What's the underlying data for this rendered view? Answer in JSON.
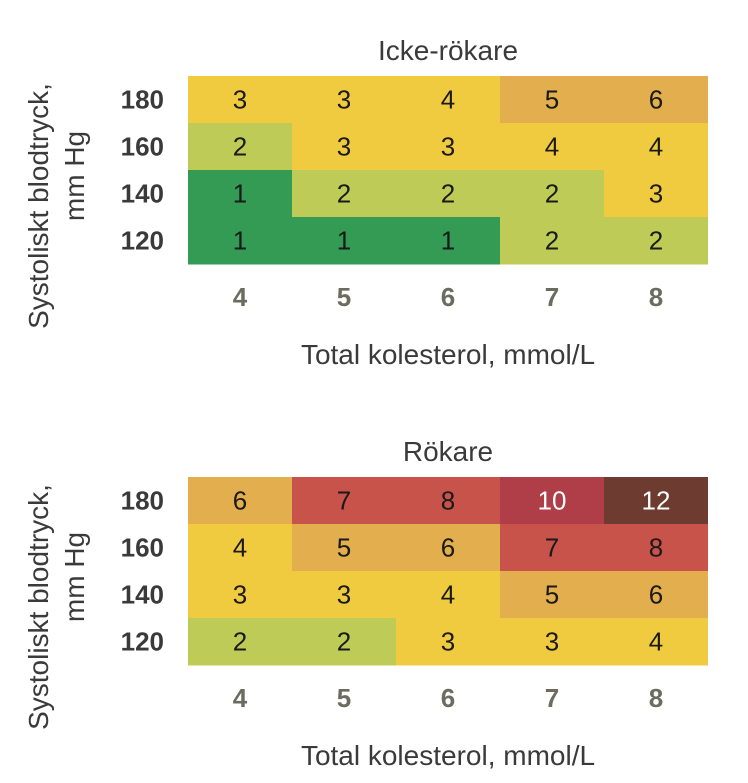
{
  "colors": {
    "1": "#339b53",
    "2": "#bfcb57",
    "3": "#f1cb3f",
    "4": "#f1cb3f",
    "5": "#e3ae4e",
    "6": "#e3ae4e",
    "7": "#c8534a",
    "8": "#c8534a",
    "10": "#b03e48",
    "12": "#6e3b30",
    "text_dark": "#1a1a1a",
    "text_light": "#ffffff"
  },
  "chart_data": [
    {
      "type": "heatmap",
      "title": "Icke-rökare",
      "ylabel_line1": "Systoliskt blodtryck,",
      "ylabel_line2": "mm Hg",
      "xlabel": "Total kolesterol, mmol/L",
      "x": [
        "4",
        "5",
        "6",
        "7",
        "8"
      ],
      "y": [
        "180",
        "160",
        "140",
        "120"
      ],
      "values": [
        [
          3,
          3,
          4,
          5,
          6
        ],
        [
          2,
          3,
          3,
          4,
          4
        ],
        [
          1,
          2,
          2,
          2,
          3
        ],
        [
          1,
          1,
          1,
          2,
          2
        ]
      ]
    },
    {
      "type": "heatmap",
      "title": "Rökare",
      "ylabel_line1": "Systoliskt blodtryck,",
      "ylabel_line2": "mm Hg",
      "xlabel": "Total kolesterol, mmol/L",
      "x": [
        "4",
        "5",
        "6",
        "7",
        "8"
      ],
      "y": [
        "180",
        "160",
        "140",
        "120"
      ],
      "values": [
        [
          6,
          7,
          8,
          10,
          12
        ],
        [
          4,
          5,
          6,
          7,
          8
        ],
        [
          3,
          3,
          4,
          5,
          6
        ],
        [
          2,
          2,
          3,
          3,
          4
        ]
      ]
    }
  ]
}
